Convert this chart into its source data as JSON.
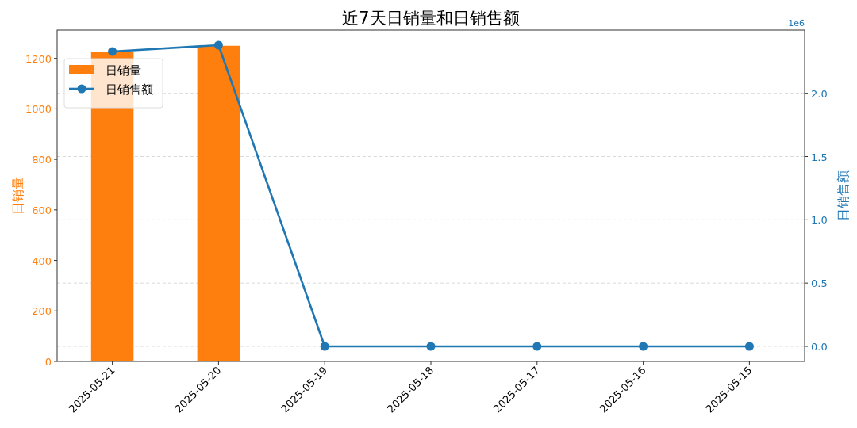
{
  "chart_data": {
    "type": "bar",
    "title": "近7天日销量和日销售额",
    "ylabel": "日销量",
    "y2label": "日销售额",
    "categories": [
      "2025-05-21",
      "2025-05-20",
      "2025-05-19",
      "2025-05-18",
      "2025-05-17",
      "2025-05-16",
      "2025-05-15"
    ],
    "series": [
      {
        "name": "日销量",
        "color": "#ff7f0e",
        "values": [
          1226,
          1250,
          0,
          0,
          0,
          0,
          0
        ]
      },
      {
        "name": "日销售额",
        "type": "line",
        "axis": "y2",
        "color": "#1f77b4",
        "values": [
          2.33,
          2.38,
          0,
          0,
          0,
          0,
          0
        ]
      }
    ],
    "ylim": [
      0,
      1312
    ],
    "yticks": [
      0,
      200,
      400,
      600,
      800,
      1000,
      1200
    ],
    "y2lim": [
      -0.119,
      2.499
    ],
    "y2ticks": [
      {
        "value": 0,
        "label": "0.0"
      },
      0.5,
      {
        "value": 1,
        "label": "1.0"
      },
      1.5,
      {
        "value": 2,
        "label": "2.0"
      }
    ],
    "annotations": [
      "1e6"
    ],
    "grid": "y",
    "legend": "top left",
    "marker": "circle",
    "line_style": "solid"
  }
}
